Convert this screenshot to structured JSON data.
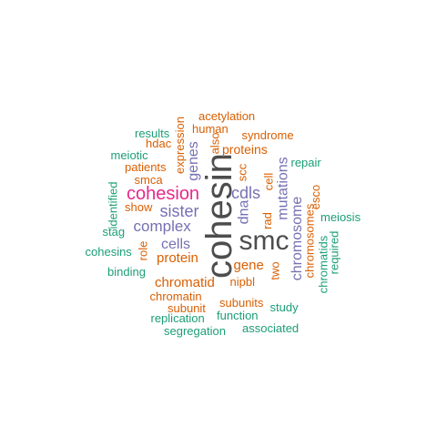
{
  "colors": {
    "dark_gray": "#4d4d4d",
    "magenta": "#e7298a",
    "purple": "#7570b3",
    "orange": "#d95f02",
    "green": "#1b9e77"
  },
  "words": [
    {
      "text": "cohesin",
      "color": "dark_gray",
      "vertical": true
    },
    {
      "text": "smc",
      "color": "dark_gray",
      "vertical": false
    },
    {
      "text": "cohesion",
      "color": "magenta",
      "vertical": false
    },
    {
      "text": "sister",
      "color": "purple",
      "vertical": false
    },
    {
      "text": "complex",
      "color": "purple",
      "vertical": false
    },
    {
      "text": "cells",
      "color": "purple",
      "vertical": false
    },
    {
      "text": "cdls",
      "color": "purple",
      "vertical": false
    },
    {
      "text": "genes",
      "color": "purple",
      "vertical": true
    },
    {
      "text": "dna",
      "color": "purple",
      "vertical": true
    },
    {
      "text": "mutations",
      "color": "purple",
      "vertical": true
    },
    {
      "text": "chromosome",
      "color": "purple",
      "vertical": true
    },
    {
      "text": "protein",
      "color": "orange",
      "vertical": false
    },
    {
      "text": "chromatid",
      "color": "orange",
      "vertical": false
    },
    {
      "text": "gene",
      "color": "orange",
      "vertical": false
    },
    {
      "text": "proteins",
      "color": "orange",
      "vertical": false
    },
    {
      "text": "patients",
      "color": "orange",
      "vertical": false
    },
    {
      "text": "smca",
      "color": "orange",
      "vertical": false
    },
    {
      "text": "hdac",
      "color": "orange",
      "vertical": false
    },
    {
      "text": "acetylation",
      "color": "orange",
      "vertical": false
    },
    {
      "text": "human",
      "color": "orange",
      "vertical": false
    },
    {
      "text": "syndrome",
      "color": "orange",
      "vertical": false
    },
    {
      "text": "expression",
      "color": "orange",
      "vertical": true
    },
    {
      "text": "also",
      "color": "orange",
      "vertical": true
    },
    {
      "text": "scc",
      "color": "orange",
      "vertical": true
    },
    {
      "text": "cell",
      "color": "orange",
      "vertical": true
    },
    {
      "text": "rad",
      "color": "orange",
      "vertical": true
    },
    {
      "text": "esco",
      "color": "orange",
      "vertical": true
    },
    {
      "text": "chromosomes",
      "color": "orange",
      "vertical": true
    },
    {
      "text": "role",
      "color": "orange",
      "vertical": true
    },
    {
      "text": "show",
      "color": "orange",
      "vertical": false
    },
    {
      "text": "nipbl",
      "color": "orange",
      "vertical": false
    },
    {
      "text": "two",
      "color": "orange",
      "vertical": true
    },
    {
      "text": "chromatin",
      "color": "orange",
      "vertical": false
    },
    {
      "text": "subunit",
      "color": "orange",
      "vertical": false
    },
    {
      "text": "subunits",
      "color": "orange",
      "vertical": false
    },
    {
      "text": "results",
      "color": "green",
      "vertical": false
    },
    {
      "text": "meiotic",
      "color": "green",
      "vertical": false
    },
    {
      "text": "identified",
      "color": "green",
      "vertical": true
    },
    {
      "text": "stag",
      "color": "green",
      "vertical": false
    },
    {
      "text": "cohesins",
      "color": "green",
      "vertical": false
    },
    {
      "text": "binding",
      "color": "green",
      "vertical": false
    },
    {
      "text": "repair",
      "color": "green",
      "vertical": false
    },
    {
      "text": "meiosis",
      "color": "green",
      "vertical": false
    },
    {
      "text": "required",
      "color": "green",
      "vertical": true
    },
    {
      "text": "chromatids",
      "color": "green",
      "vertical": true
    },
    {
      "text": "study",
      "color": "green",
      "vertical": false
    },
    {
      "text": "function",
      "color": "green",
      "vertical": false
    },
    {
      "text": "replication",
      "color": "green",
      "vertical": false
    },
    {
      "text": "associated",
      "color": "green",
      "vertical": false
    },
    {
      "text": "segregation",
      "color": "green",
      "vertical": false
    }
  ]
}
